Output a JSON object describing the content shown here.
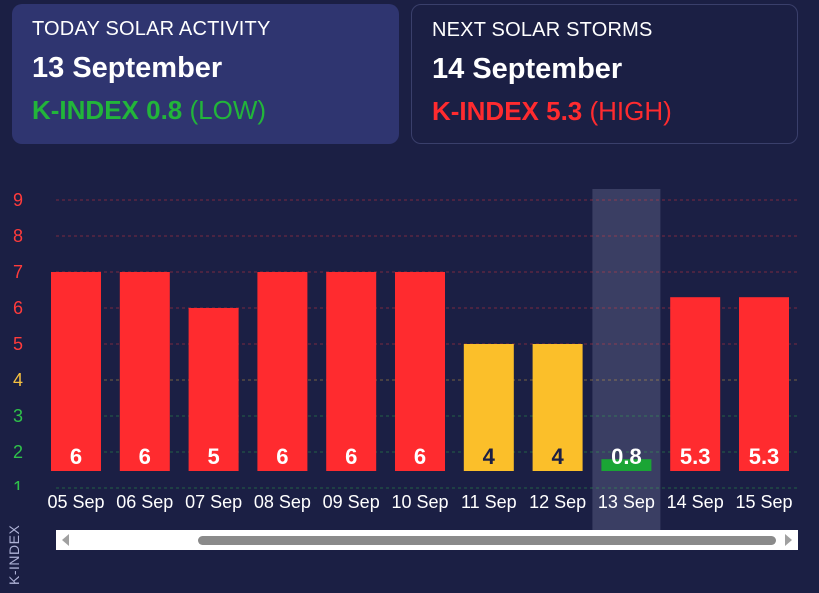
{
  "today": {
    "heading": "TODAY SOLAR ACTIVITY",
    "date": "13 September",
    "kindex_label": "K-INDEX 0.8",
    "level": "(LOW)"
  },
  "next": {
    "heading": "NEXT SOLAR STORMS",
    "date": "14 September",
    "kindex_label": "K-INDEX 5.3",
    "level": "(HIGH)"
  },
  "axis_title": "K-INDEX",
  "colors": {
    "high": "#ff2b2f",
    "moderate": "#fbbf2a",
    "low": "#1aa535",
    "highlight": "#3a3e63",
    "tick_high": "#ff3b3b",
    "tick_moderate": "#f5c040",
    "tick_low": "#2fc24a"
  },
  "chart_data": {
    "type": "bar",
    "categories": [
      "05 Sep",
      "06 Sep",
      "07 Sep",
      "08 Sep",
      "09 Sep",
      "10 Sep",
      "11 Sep",
      "12 Sep",
      "13 Sep",
      "14 Sep",
      "15 Sep"
    ],
    "values": [
      6,
      6,
      5,
      6,
      6,
      6,
      4,
      4,
      0.8,
      5.3,
      5.3
    ],
    "bar_labels": [
      "6",
      "6",
      "5",
      "6",
      "6",
      "6",
      "4",
      "4",
      "0.8",
      "5.3",
      "5.3"
    ],
    "bar_levels": [
      "high",
      "high",
      "high",
      "high",
      "high",
      "high",
      "moderate",
      "moderate",
      "low",
      "high",
      "high"
    ],
    "highlighted": "13 Sep",
    "ylabel": "K-INDEX",
    "yticks": [
      1,
      2,
      3,
      4,
      5,
      6,
      7,
      8,
      9
    ],
    "ytick_levels": [
      "low",
      "low",
      "low",
      "moderate",
      "high",
      "high",
      "high",
      "high",
      "high"
    ],
    "ylim": [
      1,
      9
    ],
    "grid": true
  }
}
